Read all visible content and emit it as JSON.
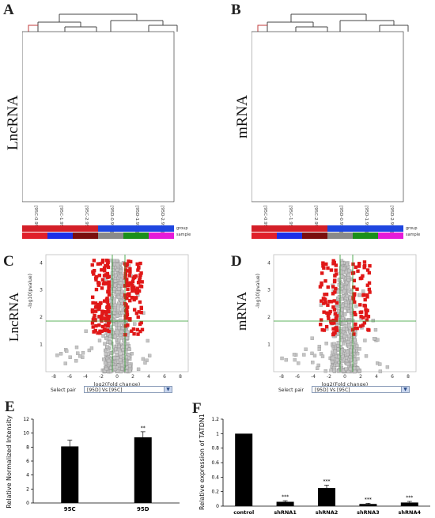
{
  "panels": {
    "a": "A",
    "b": "B",
    "c": "C",
    "d": "D",
    "e": "E",
    "f": "F"
  },
  "heatmap_labels": {
    "left": "LncRNA",
    "right": "mRNA",
    "group": "group",
    "sample": "sample"
  },
  "heatmap_samples": [
    "[95C-0.95C]",
    "[95C-1.95C]",
    "[95C-2.95C]",
    "[95D-0.95D]",
    "[95D-1.95D]",
    "[95D-2.95D]"
  ],
  "colors": {
    "group": [
      "#d41f28",
      "#d41f28",
      "#d41f28",
      "#1e46e0",
      "#1e46e0",
      "#1e46e0"
    ],
    "sample": [
      "#e0202a",
      "#1c2fe8",
      "#7a0e0e",
      "#8a8a8a",
      "#1b8f1b",
      "#e51ad9"
    ],
    "volcano_sig": "#e01818",
    "volcano_ns": "#bdbdbd",
    "threshold": "#2a9a2a"
  },
  "volcano": {
    "left_label": "LncRNA",
    "right_label": "mRNA",
    "xlabel": "log2(Fold change)",
    "ylabel": "-log10(pvalue)",
    "xticks": [
      "-8",
      "-6",
      "-4",
      "-2",
      "0",
      "2",
      "4",
      "6",
      "8"
    ],
    "yticks": [
      "1",
      "2",
      "3",
      "4"
    ],
    "select_label": "Select pair",
    "select_value": "[95D] Vs [95C]"
  },
  "chart_data": [
    {
      "type": "bar",
      "categories": [
        "95C",
        "95D"
      ],
      "values": [
        8.1,
        9.4
      ],
      "errors": [
        0.9,
        0.8
      ],
      "annotations": [
        "",
        "**"
      ],
      "ylabel": "Relative Normalized Intensity",
      "ylim": [
        0,
        12
      ],
      "yticks": [
        "0",
        "2",
        "4",
        "6",
        "8",
        "10",
        "12"
      ]
    },
    {
      "type": "bar",
      "categories": [
        "control",
        "shRNA1",
        "shRNA2",
        "shRNA3",
        "shRNA4"
      ],
      "values": [
        1.0,
        0.06,
        0.25,
        0.03,
        0.05
      ],
      "errors": [
        0.0,
        0.015,
        0.04,
        0.01,
        0.015
      ],
      "annotations": [
        "",
        "***",
        "***",
        "***",
        "***"
      ],
      "ylabel": "Relative expression of TATDN1",
      "ylim": [
        0,
        1.2
      ],
      "yticks": [
        "0",
        "0.2",
        "0.4",
        "0.6",
        "0.8",
        "1",
        "1.2"
      ]
    }
  ]
}
